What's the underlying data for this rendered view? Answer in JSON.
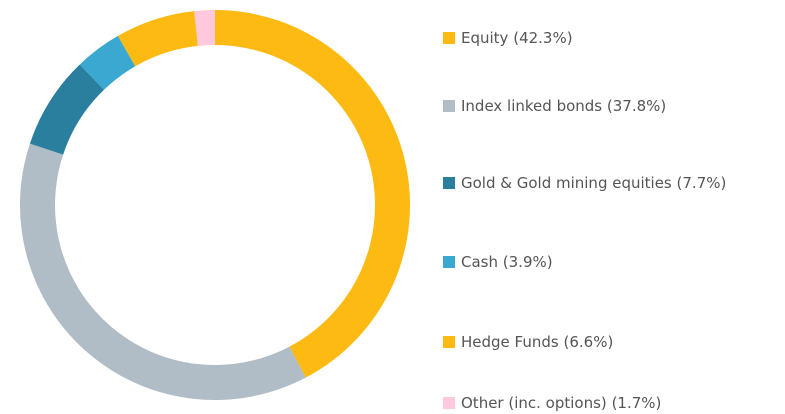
{
  "chart_data": {
    "type": "donut",
    "categories": [
      "Equity",
      "Index linked bonds",
      "Gold & Gold mining equities",
      "Cash",
      "Hedge Funds",
      "Other (inc. options)"
    ],
    "values": [
      42.3,
      37.8,
      7.7,
      3.9,
      6.6,
      1.7
    ],
    "value_labels": [
      "(42.3%)",
      "(37.8%)",
      "(7.7%)",
      "(3.9%)",
      "(6.6%)",
      "(1.7%)"
    ],
    "colors": [
      "#fdba12",
      "#b0bcc6",
      "#2b7f9e",
      "#3aa8d0",
      "#fdba12",
      "#ffc8dc"
    ],
    "legend": "right"
  }
}
